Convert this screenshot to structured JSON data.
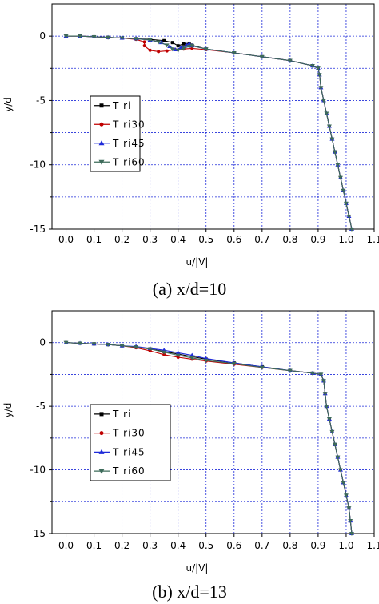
{
  "chart_data": [
    {
      "type": "line",
      "caption": "(a) x/d=10",
      "xlabel": "u/|V|",
      "ylabel": "y/d",
      "xlim": [
        -0.05,
        1.1
      ],
      "ylim": [
        -15,
        2.5
      ],
      "xticks": [
        "0.0",
        "0.1",
        "0.2",
        "0.3",
        "0.4",
        "0.5",
        "0.6",
        "0.7",
        "0.8",
        "0.9",
        "1.0",
        "1.1"
      ],
      "yticks": [
        "0",
        "-5",
        "-10",
        "-15"
      ],
      "grid": true,
      "legend_position": "left",
      "series": [
        {
          "name": "T ri",
          "color": "#000000",
          "marker": "square",
          "points": [
            [
              0,
              0
            ],
            [
              0.05,
              0
            ],
            [
              0.1,
              -0.05
            ],
            [
              0.15,
              -0.1
            ],
            [
              0.2,
              -0.15
            ],
            [
              0.25,
              -0.2
            ],
            [
              0.3,
              -0.25
            ],
            [
              0.35,
              -0.35
            ],
            [
              0.38,
              -0.5
            ],
            [
              0.4,
              -0.75
            ],
            [
              0.42,
              -0.6
            ],
            [
              0.44,
              -0.55
            ],
            [
              0.45,
              -0.7
            ],
            [
              0.5,
              -1.0
            ],
            [
              0.6,
              -1.3
            ],
            [
              0.7,
              -1.6
            ],
            [
              0.8,
              -1.9
            ],
            [
              0.88,
              -2.3
            ],
            [
              0.9,
              -2.5
            ],
            [
              0.905,
              -3
            ],
            [
              0.91,
              -4
            ],
            [
              0.92,
              -5
            ],
            [
              0.93,
              -6
            ],
            [
              0.94,
              -7
            ],
            [
              0.95,
              -8
            ],
            [
              0.96,
              -9
            ],
            [
              0.97,
              -10
            ],
            [
              0.98,
              -11
            ],
            [
              0.99,
              -12
            ],
            [
              1.0,
              -13
            ],
            [
              1.01,
              -14
            ],
            [
              1.02,
              -15
            ]
          ]
        },
        {
          "name": "T ri30",
          "color": "#c00000",
          "marker": "circle",
          "points": [
            [
              0,
              0
            ],
            [
              0.05,
              0
            ],
            [
              0.1,
              -0.05
            ],
            [
              0.15,
              -0.1
            ],
            [
              0.2,
              -0.15
            ],
            [
              0.25,
              -0.25
            ],
            [
              0.28,
              -0.45
            ],
            [
              0.28,
              -0.75
            ],
            [
              0.3,
              -1.1
            ],
            [
              0.33,
              -1.2
            ],
            [
              0.36,
              -1.15
            ],
            [
              0.39,
              -1.05
            ],
            [
              0.42,
              -1.0
            ],
            [
              0.45,
              -0.95
            ],
            [
              0.5,
              -1.05
            ],
            [
              0.6,
              -1.3
            ],
            [
              0.7,
              -1.6
            ],
            [
              0.8,
              -1.9
            ],
            [
              0.88,
              -2.3
            ],
            [
              0.9,
              -2.5
            ],
            [
              0.905,
              -3
            ],
            [
              0.91,
              -4
            ],
            [
              0.92,
              -5
            ],
            [
              0.93,
              -6
            ],
            [
              0.94,
              -7
            ],
            [
              0.95,
              -8
            ],
            [
              0.96,
              -9
            ],
            [
              0.97,
              -10
            ],
            [
              0.98,
              -11
            ],
            [
              0.99,
              -12
            ],
            [
              1.0,
              -13
            ],
            [
              1.01,
              -14
            ],
            [
              1.02,
              -15
            ]
          ]
        },
        {
          "name": "T ri45",
          "color": "#1f2bd9",
          "marker": "triangle",
          "points": [
            [
              0,
              0
            ],
            [
              0.05,
              0
            ],
            [
              0.1,
              -0.05
            ],
            [
              0.15,
              -0.1
            ],
            [
              0.2,
              -0.15
            ],
            [
              0.25,
              -0.2
            ],
            [
              0.3,
              -0.3
            ],
            [
              0.34,
              -0.5
            ],
            [
              0.37,
              -0.8
            ],
            [
              0.39,
              -1.05
            ],
            [
              0.41,
              -0.9
            ],
            [
              0.43,
              -0.7
            ],
            [
              0.44,
              -0.6
            ],
            [
              0.45,
              -0.75
            ],
            [
              0.5,
              -1.0
            ],
            [
              0.6,
              -1.3
            ],
            [
              0.7,
              -1.6
            ],
            [
              0.8,
              -1.9
            ],
            [
              0.88,
              -2.3
            ],
            [
              0.9,
              -2.5
            ],
            [
              0.905,
              -3
            ],
            [
              0.91,
              -4
            ],
            [
              0.92,
              -5
            ],
            [
              0.93,
              -6
            ],
            [
              0.94,
              -7
            ],
            [
              0.95,
              -8
            ],
            [
              0.96,
              -9
            ],
            [
              0.97,
              -10
            ],
            [
              0.98,
              -11
            ],
            [
              0.99,
              -12
            ],
            [
              1.0,
              -13
            ],
            [
              1.01,
              -14
            ],
            [
              1.02,
              -15
            ]
          ]
        },
        {
          "name": "T ri60",
          "color": "#3d6b5a",
          "marker": "triangle-down",
          "points": [
            [
              0,
              0
            ],
            [
              0.05,
              0
            ],
            [
              0.1,
              -0.05
            ],
            [
              0.15,
              -0.1
            ],
            [
              0.2,
              -0.15
            ],
            [
              0.25,
              -0.2
            ],
            [
              0.3,
              -0.3
            ],
            [
              0.33,
              -0.45
            ],
            [
              0.36,
              -0.7
            ],
            [
              0.38,
              -1.0
            ],
            [
              0.4,
              -1.1
            ],
            [
              0.42,
              -0.95
            ],
            [
              0.44,
              -0.8
            ],
            [
              0.45,
              -0.75
            ],
            [
              0.5,
              -1.0
            ],
            [
              0.6,
              -1.3
            ],
            [
              0.7,
              -1.6
            ],
            [
              0.8,
              -1.9
            ],
            [
              0.88,
              -2.3
            ],
            [
              0.9,
              -2.5
            ],
            [
              0.905,
              -3
            ],
            [
              0.91,
              -4
            ],
            [
              0.92,
              -5
            ],
            [
              0.93,
              -6
            ],
            [
              0.94,
              -7
            ],
            [
              0.95,
              -8
            ],
            [
              0.96,
              -9
            ],
            [
              0.97,
              -10
            ],
            [
              0.98,
              -11
            ],
            [
              0.99,
              -12
            ],
            [
              1.0,
              -13
            ],
            [
              1.01,
              -14
            ],
            [
              1.02,
              -15
            ]
          ]
        }
      ]
    },
    {
      "type": "line",
      "caption": "(b) x/d=13",
      "xlabel": "u/|V|",
      "ylabel": "y/d",
      "xlim": [
        -0.05,
        1.1
      ],
      "ylim": [
        -15,
        2.5
      ],
      "xticks": [
        "0.0",
        "0.1",
        "0.2",
        "0.3",
        "0.4",
        "0.5",
        "0.6",
        "0.7",
        "0.8",
        "0.9",
        "1.0",
        "1.1"
      ],
      "yticks": [
        "0",
        "-5",
        "-10",
        "-15"
      ],
      "grid": true,
      "legend_position": "left",
      "series": [
        {
          "name": "T ri",
          "color": "#000000",
          "marker": "square",
          "points": [
            [
              0,
              0
            ],
            [
              0.05,
              -0.05
            ],
            [
              0.1,
              -0.1
            ],
            [
              0.15,
              -0.15
            ],
            [
              0.2,
              -0.25
            ],
            [
              0.25,
              -0.35
            ],
            [
              0.3,
              -0.5
            ],
            [
              0.35,
              -0.7
            ],
            [
              0.4,
              -0.9
            ],
            [
              0.5,
              -1.3
            ],
            [
              0.6,
              -1.6
            ],
            [
              0.7,
              -1.9
            ],
            [
              0.8,
              -2.2
            ],
            [
              0.88,
              -2.4
            ],
            [
              0.91,
              -2.5
            ],
            [
              0.92,
              -3
            ],
            [
              0.925,
              -4
            ],
            [
              0.93,
              -5
            ],
            [
              0.94,
              -6
            ],
            [
              0.95,
              -7
            ],
            [
              0.96,
              -8
            ],
            [
              0.97,
              -9
            ],
            [
              0.98,
              -10
            ],
            [
              0.99,
              -11
            ],
            [
              1.0,
              -12
            ],
            [
              1.01,
              -13
            ],
            [
              1.015,
              -14
            ],
            [
              1.02,
              -15
            ]
          ]
        },
        {
          "name": "T ri30",
          "color": "#c00000",
          "marker": "circle",
          "points": [
            [
              0,
              0
            ],
            [
              0.05,
              -0.05
            ],
            [
              0.1,
              -0.1
            ],
            [
              0.15,
              -0.15
            ],
            [
              0.2,
              -0.25
            ],
            [
              0.25,
              -0.4
            ],
            [
              0.3,
              -0.65
            ],
            [
              0.35,
              -0.95
            ],
            [
              0.4,
              -1.15
            ],
            [
              0.45,
              -1.3
            ],
            [
              0.5,
              -1.45
            ],
            [
              0.6,
              -1.7
            ],
            [
              0.7,
              -1.95
            ],
            [
              0.8,
              -2.2
            ],
            [
              0.88,
              -2.4
            ],
            [
              0.91,
              -2.5
            ],
            [
              0.92,
              -3
            ],
            [
              0.925,
              -4
            ],
            [
              0.93,
              -5
            ],
            [
              0.94,
              -6
            ],
            [
              0.95,
              -7
            ],
            [
              0.96,
              -8
            ],
            [
              0.97,
              -9
            ],
            [
              0.98,
              -10
            ],
            [
              0.99,
              -11
            ],
            [
              1.0,
              -12
            ],
            [
              1.01,
              -13
            ],
            [
              1.015,
              -14
            ],
            [
              1.02,
              -15
            ]
          ]
        },
        {
          "name": "T ri45",
          "color": "#1f2bd9",
          "marker": "triangle",
          "points": [
            [
              0,
              0
            ],
            [
              0.05,
              -0.05
            ],
            [
              0.1,
              -0.1
            ],
            [
              0.15,
              -0.15
            ],
            [
              0.2,
              -0.25
            ],
            [
              0.25,
              -0.3
            ],
            [
              0.3,
              -0.45
            ],
            [
              0.35,
              -0.6
            ],
            [
              0.4,
              -0.8
            ],
            [
              0.45,
              -1.0
            ],
            [
              0.5,
              -1.25
            ],
            [
              0.6,
              -1.6
            ],
            [
              0.7,
              -1.9
            ],
            [
              0.8,
              -2.2
            ],
            [
              0.88,
              -2.4
            ],
            [
              0.91,
              -2.5
            ],
            [
              0.92,
              -3
            ],
            [
              0.925,
              -4
            ],
            [
              0.93,
              -5
            ],
            [
              0.94,
              -6
            ],
            [
              0.95,
              -7
            ],
            [
              0.96,
              -8
            ],
            [
              0.97,
              -9
            ],
            [
              0.98,
              -10
            ],
            [
              0.99,
              -11
            ],
            [
              1.0,
              -12
            ],
            [
              1.01,
              -13
            ],
            [
              1.015,
              -14
            ],
            [
              1.02,
              -15
            ]
          ]
        },
        {
          "name": "T ri60",
          "color": "#3d6b5a",
          "marker": "triangle-down",
          "points": [
            [
              0,
              0
            ],
            [
              0.05,
              -0.05
            ],
            [
              0.1,
              -0.1
            ],
            [
              0.15,
              -0.15
            ],
            [
              0.2,
              -0.25
            ],
            [
              0.25,
              -0.35
            ],
            [
              0.3,
              -0.5
            ],
            [
              0.35,
              -0.75
            ],
            [
              0.4,
              -1.0
            ],
            [
              0.45,
              -1.2
            ],
            [
              0.5,
              -1.4
            ],
            [
              0.6,
              -1.65
            ],
            [
              0.7,
              -1.95
            ],
            [
              0.8,
              -2.2
            ],
            [
              0.88,
              -2.4
            ],
            [
              0.91,
              -2.5
            ],
            [
              0.92,
              -3
            ],
            [
              0.925,
              -4
            ],
            [
              0.93,
              -5
            ],
            [
              0.94,
              -6
            ],
            [
              0.95,
              -7
            ],
            [
              0.96,
              -8
            ],
            [
              0.97,
              -9
            ],
            [
              0.98,
              -10
            ],
            [
              0.99,
              -11
            ],
            [
              1.0,
              -12
            ],
            [
              1.01,
              -13
            ],
            [
              1.015,
              -14
            ],
            [
              1.02,
              -15
            ]
          ]
        }
      ]
    }
  ]
}
